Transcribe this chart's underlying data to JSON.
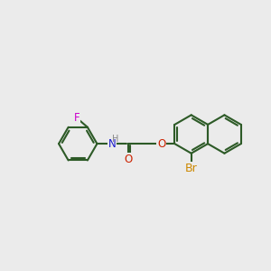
{
  "background_color": "#ebebeb",
  "bond_color": "#2d5a27",
  "bond_width": 1.5,
  "atom_colors": {
    "F": "#cc00cc",
    "N": "#1a1acc",
    "O": "#cc2200",
    "Br": "#cc8800",
    "H": "#888888",
    "C": "#000000"
  },
  "font_size": 8.5,
  "fig_size": [
    3.0,
    3.0
  ],
  "dpi": 100
}
